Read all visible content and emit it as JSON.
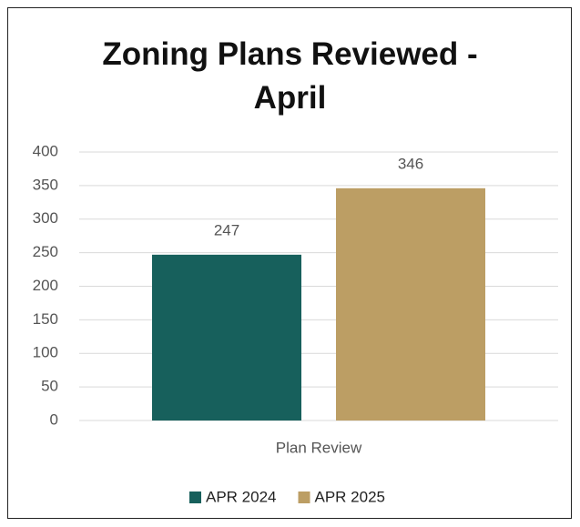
{
  "chart_data": {
    "type": "bar",
    "title": "Zoning Plans Reviewed - April",
    "categories": [
      "Plan Review"
    ],
    "series": [
      {
        "name": "APR 2024",
        "color": "#17605c",
        "values": [
          247
        ]
      },
      {
        "name": "APR 2025",
        "color": "#bc9e64",
        "values": [
          346
        ]
      }
    ],
    "ylim": [
      0,
      400
    ],
    "yticks": [
      0,
      50,
      100,
      150,
      200,
      250,
      300,
      350,
      400
    ],
    "grid": true,
    "legend": "bottom"
  }
}
